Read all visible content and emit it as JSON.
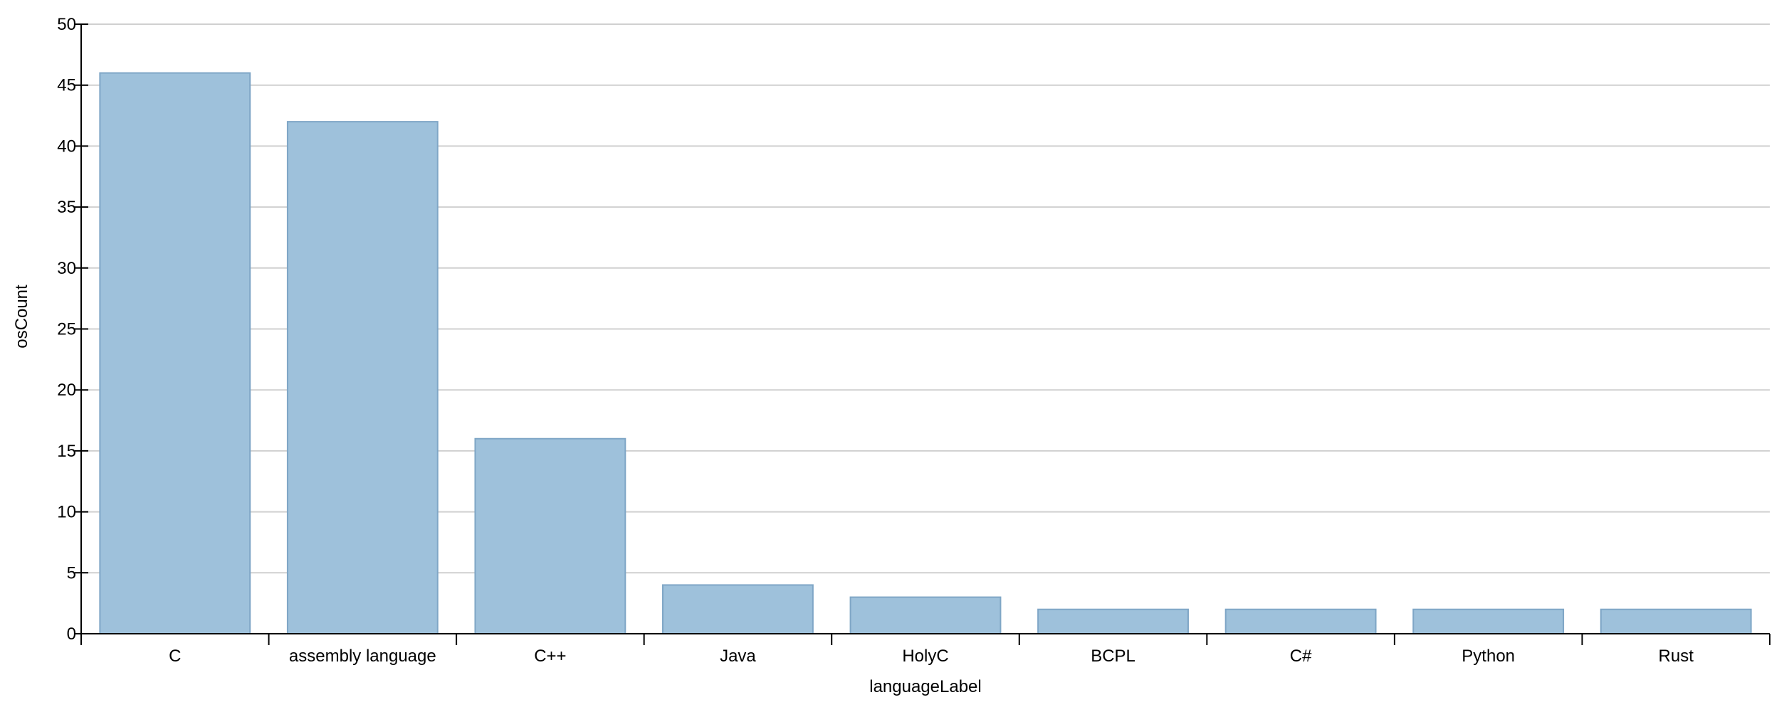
{
  "chart_data": {
    "type": "bar",
    "title": "",
    "xlabel": "languageLabel",
    "ylabel": "osCount",
    "categories": [
      "C",
      "assembly language",
      "C++",
      "Java",
      "HolyC",
      "BCPL",
      "C#",
      "Python",
      "Rust"
    ],
    "values": [
      46,
      42,
      16,
      4,
      3,
      2,
      2,
      2,
      2
    ],
    "ylim": [
      0,
      50
    ],
    "yticks": [
      0,
      5,
      10,
      15,
      20,
      25,
      30,
      35,
      40,
      45,
      50
    ],
    "grid": true,
    "colors": {
      "bar_fill": "#9ec1db",
      "bar_stroke": "#7fa6c6",
      "grid": "#d0d0d0",
      "axis": "#000000"
    }
  }
}
